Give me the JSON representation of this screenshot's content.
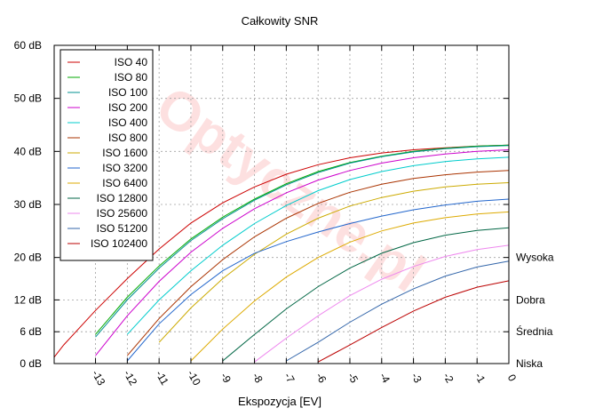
{
  "chart_data": {
    "type": "line",
    "title": "Całkowity SNR",
    "xlabel": "Ekspozycja [EV]",
    "ylabel": "",
    "watermark": "Optyczne.pl",
    "xlim": [
      -14.3,
      0
    ],
    "ylim": [
      0,
      60
    ],
    "grid": true,
    "legend_position": "top-left",
    "x_ticks": [
      -13,
      -12,
      -11,
      -10,
      -9,
      -8,
      -7,
      -6,
      -5,
      -4,
      -3,
      -2,
      -1,
      0
    ],
    "x_tick_labels": [
      "-13",
      "-12",
      "-11",
      "-10",
      "-9",
      "-8",
      "-7",
      "-6",
      "-5",
      "-4",
      "-3",
      "-2",
      "-1",
      "0"
    ],
    "y_ticks": [
      0,
      6,
      12,
      20,
      30,
      40,
      50,
      60
    ],
    "y_tick_labels": [
      "0 dB",
      "6 dB",
      "12 dB",
      "20 dB",
      "30 dB",
      "40 dB",
      "50 dB",
      "60 dB"
    ],
    "right_labels": [
      {
        "y": 20,
        "label": "Wysoka"
      },
      {
        "y": 12,
        "label": "Dobra"
      },
      {
        "y": 6,
        "label": "Średnia"
      },
      {
        "y": 0,
        "label": "Niska"
      }
    ],
    "x": [
      -14.3,
      -14,
      -13,
      -12,
      -11,
      -10,
      -9,
      -8,
      -7,
      -6,
      -5,
      -4,
      -3,
      -2,
      -1,
      0
    ],
    "series": [
      {
        "name": "ISO 40",
        "color": "#cc0000",
        "values": [
          1.2,
          3.5,
          10.0,
          16.0,
          21.6,
          26.5,
          30.3,
          33.3,
          35.7,
          37.5,
          38.8,
          39.7,
          40.3,
          40.7,
          41.0,
          41.2
        ]
      },
      {
        "name": "ISO 80",
        "color": "#00aa00",
        "values": [
          null,
          null,
          5.5,
          12.5,
          18.4,
          23.5,
          27.6,
          31.0,
          33.9,
          36.2,
          37.9,
          39.1,
          40.0,
          40.6,
          41.0,
          41.2
        ]
      },
      {
        "name": "ISO 100",
        "color": "#009090",
        "values": [
          null,
          null,
          5.0,
          12.0,
          18.0,
          23.2,
          27.3,
          30.8,
          33.7,
          36.0,
          37.8,
          39.0,
          39.9,
          40.5,
          40.9,
          41.1
        ]
      },
      {
        "name": "ISO 200",
        "color": "#cc00cc",
        "values": [
          null,
          null,
          1.5,
          9.0,
          15.5,
          21.0,
          25.5,
          29.2,
          32.2,
          34.6,
          36.4,
          37.8,
          38.8,
          39.5,
          40.0,
          40.3
        ]
      },
      {
        "name": "ISO 400",
        "color": "#00cccc",
        "values": [
          null,
          null,
          null,
          5.5,
          12.0,
          17.5,
          22.3,
          26.4,
          29.8,
          32.6,
          34.7,
          36.2,
          37.3,
          38.1,
          38.6,
          38.9
        ]
      },
      {
        "name": "ISO 800",
        "color": "#aa3300",
        "values": [
          null,
          null,
          null,
          1.5,
          8.5,
          14.5,
          19.6,
          23.9,
          27.4,
          30.2,
          32.3,
          33.8,
          34.9,
          35.6,
          36.1,
          36.4
        ]
      },
      {
        "name": "ISO 1600",
        "color": "#ccaa00",
        "values": [
          null,
          null,
          null,
          null,
          4.0,
          10.5,
          16.0,
          20.6,
          24.4,
          27.4,
          29.7,
          31.3,
          32.5,
          33.3,
          33.8,
          34.1
        ]
      },
      {
        "name": "ISO 3200",
        "color": "#2266cc",
        "values": [
          null,
          null,
          null,
          0.5,
          7.5,
          13.0,
          17.5,
          20.8,
          23.0,
          24.8,
          26.4,
          27.8,
          29.0,
          29.9,
          30.6,
          31.0
        ]
      },
      {
        "name": "ISO 6400",
        "color": "#ddaa00",
        "values": [
          null,
          null,
          null,
          null,
          null,
          0.5,
          6.5,
          11.8,
          16.3,
          20.0,
          22.9,
          25.0,
          26.5,
          27.5,
          28.2,
          28.6
        ]
      },
      {
        "name": "ISO 12800",
        "color": "#006644",
        "values": [
          null,
          null,
          null,
          null,
          null,
          null,
          0.5,
          5.5,
          10.3,
          14.5,
          18.0,
          20.8,
          22.8,
          24.2,
          25.1,
          25.6
        ]
      },
      {
        "name": "ISO 25600",
        "color": "#ee88ee",
        "values": [
          null,
          null,
          null,
          null,
          null,
          null,
          null,
          0.3,
          4.8,
          9.0,
          12.8,
          15.9,
          18.3,
          20.2,
          21.5,
          22.3
        ]
      },
      {
        "name": "ISO 51200",
        "color": "#3366aa",
        "values": [
          null,
          null,
          null,
          null,
          null,
          null,
          null,
          null,
          0.5,
          4.0,
          7.8,
          11.2,
          14.1,
          16.5,
          18.2,
          19.3
        ]
      },
      {
        "name": "ISO 102400",
        "color": "#bb0000",
        "values": [
          null,
          null,
          null,
          null,
          null,
          null,
          null,
          null,
          null,
          0.3,
          3.5,
          6.8,
          9.9,
          12.5,
          14.4,
          15.6
        ]
      }
    ]
  }
}
